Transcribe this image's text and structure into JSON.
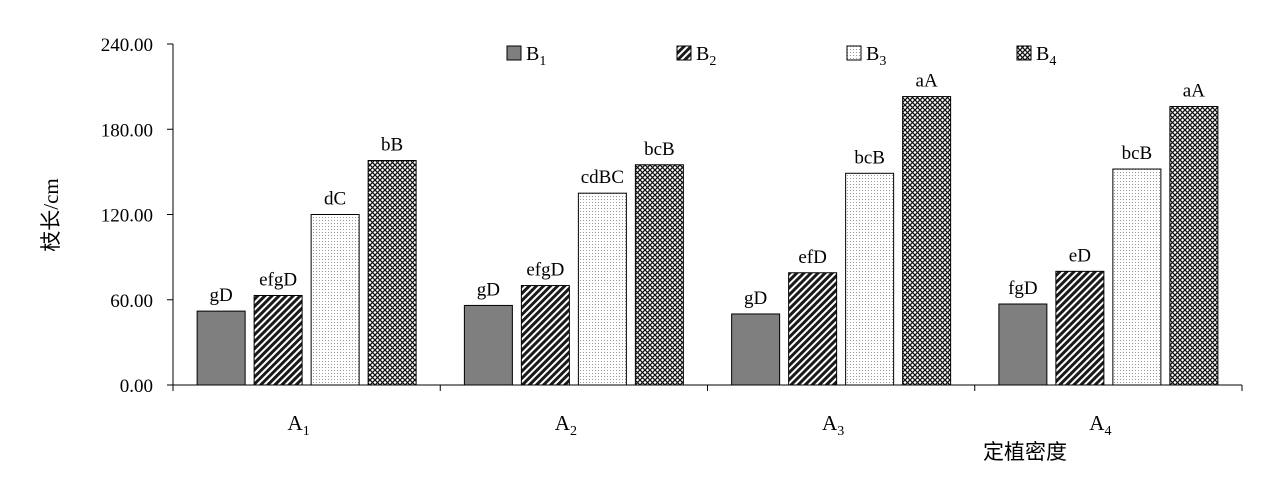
{
  "chart_data": {
    "type": "bar",
    "ylabel": "枝长/cm",
    "xlabel": "定植密度",
    "ylim": [
      0,
      240
    ],
    "yticks": [
      "0.00",
      "60.00",
      "120.00",
      "180.00",
      "240.00"
    ],
    "categories": [
      {
        "main": "A",
        "sub": "1"
      },
      {
        "main": "A",
        "sub": "2"
      },
      {
        "main": "A",
        "sub": "3"
      },
      {
        "main": "A",
        "sub": "4"
      }
    ],
    "legend_position": "top-right",
    "series": [
      {
        "main": "B",
        "sub": "1",
        "pattern": "solid-gray",
        "values": [
          52,
          56,
          50,
          57
        ],
        "labels": [
          "gD",
          "gD",
          "gD",
          "fgD"
        ]
      },
      {
        "main": "B",
        "sub": "2",
        "pattern": "dark-hatch",
        "values": [
          63,
          70,
          79,
          80
        ],
        "labels": [
          "efgD",
          "efgD",
          "efD",
          "eD"
        ]
      },
      {
        "main": "B",
        "sub": "3",
        "pattern": "light-dots",
        "values": [
          120,
          135,
          149,
          152
        ],
        "labels": [
          "dC",
          "cdBC",
          "bcB",
          "bcB"
        ]
      },
      {
        "main": "B",
        "sub": "4",
        "pattern": "cross-hatch",
        "values": [
          158,
          155,
          203,
          196
        ],
        "labels": [
          "bB",
          "bcB",
          "aA",
          "aA"
        ]
      }
    ],
    "colors": {
      "bar_edge": "#000000",
      "solid_gray": "#7f7f7f",
      "axis": "#000000"
    }
  }
}
